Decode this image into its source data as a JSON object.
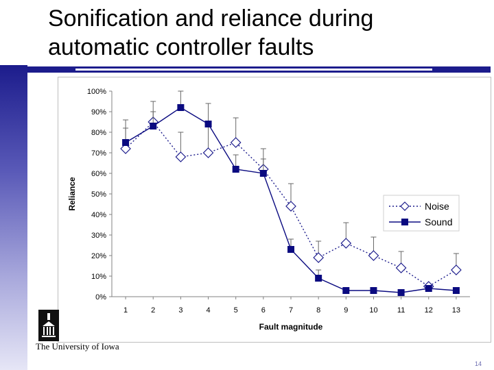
{
  "slide": {
    "title": "Sonification and reliance during automatic controller faults",
    "footer_text": "The University of Iowa",
    "page_number": "14"
  },
  "colors": {
    "accent": "#1c1c8c",
    "noise_series": "#1c1c8c",
    "sound_series": "#0a0a80"
  },
  "chart_data": {
    "type": "line",
    "title": "",
    "xlabel": "Fault magnitude",
    "ylabel": "Reliance",
    "x": [
      1,
      2,
      3,
      4,
      5,
      6,
      7,
      8,
      9,
      10,
      11,
      12,
      13
    ],
    "ylim": [
      0,
      100
    ],
    "yticks": [
      "0%",
      "10%",
      "20%",
      "30%",
      "40%",
      "50%",
      "60%",
      "70%",
      "80%",
      "90%",
      "100%"
    ],
    "grid": false,
    "legend_position": "right",
    "series": [
      {
        "name": "Noise",
        "style": "dotted",
        "marker": "diamond-open",
        "values": [
          72,
          85,
          68,
          70,
          75,
          62,
          44,
          19,
          26,
          20,
          14,
          5,
          13
        ],
        "error_upper": [
          86,
          95,
          80,
          94,
          87,
          72,
          55,
          27,
          36,
          29,
          22,
          null,
          21
        ]
      },
      {
        "name": "Sound",
        "style": "solid",
        "marker": "square-filled",
        "values": [
          75,
          83,
          92,
          84,
          62,
          60,
          23,
          9,
          3,
          3,
          2,
          4,
          3
        ],
        "error_upper": [
          82,
          90,
          100,
          null,
          69,
          67,
          28,
          13,
          null,
          null,
          null,
          null,
          null
        ]
      }
    ]
  }
}
